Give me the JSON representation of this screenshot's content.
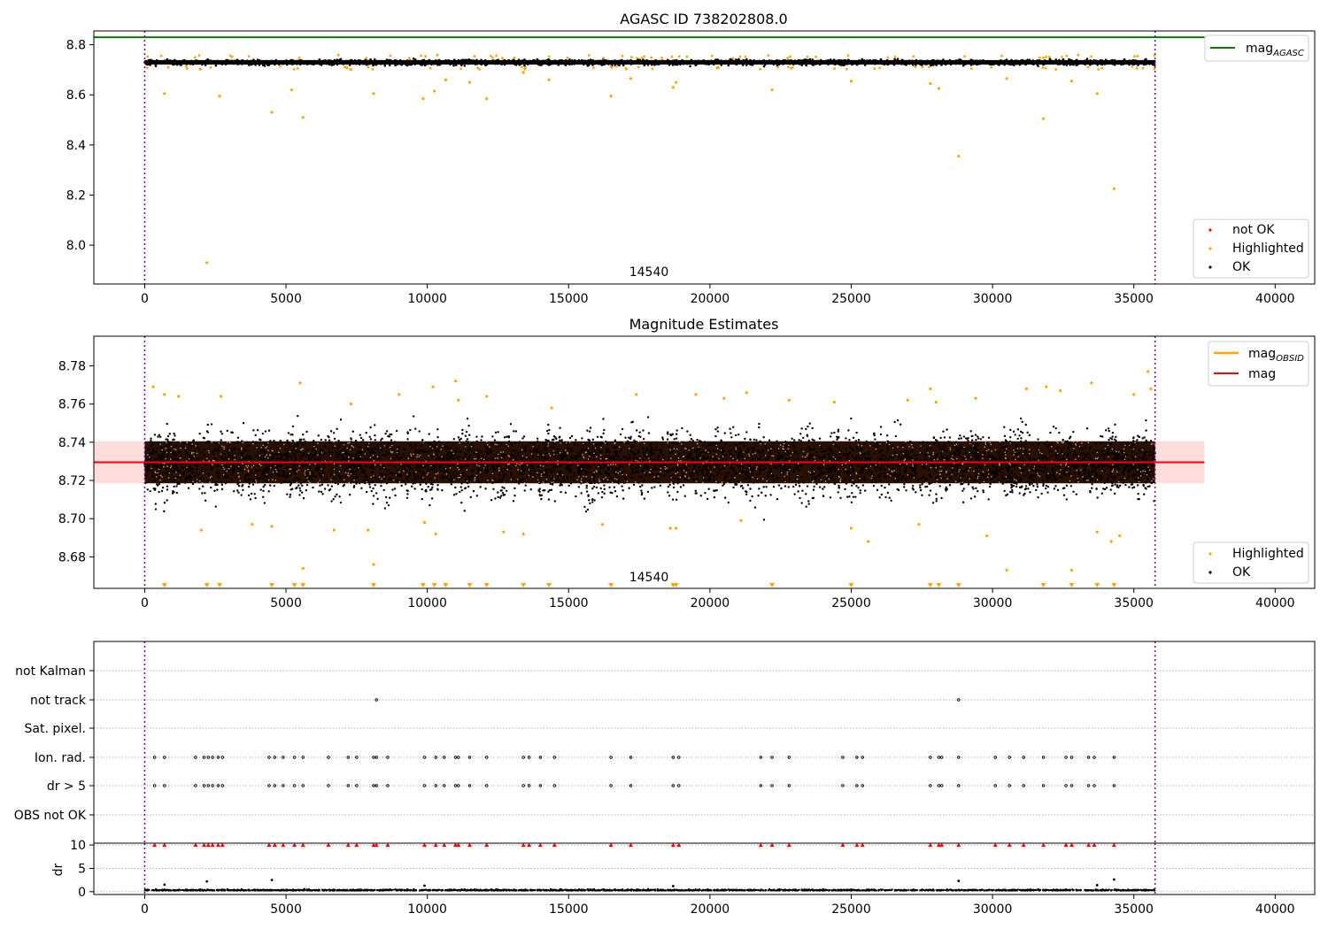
{
  "chart_data": [
    {
      "type": "scatter",
      "panel": "agasc",
      "title": "AGASC ID 738202808.0",
      "xlim": [
        -1800,
        41400
      ],
      "ylim": [
        7.845,
        8.855
      ],
      "xticks": [
        0,
        5000,
        10000,
        15000,
        20000,
        25000,
        30000,
        35000,
        40000
      ],
      "yticks": [
        8.0,
        8.2,
        8.4,
        8.6,
        8.8
      ],
      "ytick_labels": [
        "8.0",
        "8.2",
        "8.4",
        "8.6",
        "8.8"
      ],
      "obsid_label": "14540",
      "obsid_label_x": 17700,
      "obs_boundaries": [
        0,
        35750
      ],
      "grid": false,
      "legend_main": {
        "placement": "lower-right",
        "entries": [
          "not OK",
          "Highlighted",
          "OK"
        ]
      },
      "legend_line": {
        "placement": "upper-right",
        "entries": [
          "mag_AGASC"
        ],
        "label_text": "mag",
        "label_sub": "AGASC"
      },
      "series": [
        {
          "name": "mag_AGASC",
          "kind": "hline",
          "y": 8.83,
          "x_range": [
            -1800,
            37500
          ],
          "color": "#008000"
        },
        {
          "name": "OK",
          "kind": "band_points",
          "x_range": [
            0,
            35750
          ],
          "y_center": 8.73,
          "y_spread": 0.016,
          "color": "#000000"
        },
        {
          "name": "Highlighted",
          "color": "#ffa500",
          "x": [
            700,
            2200,
            2650,
            4500,
            5200,
            5600,
            8100,
            9850,
            10250,
            10650,
            11500,
            12100,
            13400,
            14300,
            16500,
            17200,
            18700,
            18800,
            22200,
            25000,
            27800,
            28100,
            28800,
            30500,
            31800,
            32800,
            33700,
            34300
          ],
          "y": [
            8.605,
            7.93,
            8.595,
            8.53,
            8.62,
            8.51,
            8.605,
            8.585,
            8.615,
            8.66,
            8.65,
            8.585,
            8.69,
            8.66,
            8.595,
            8.665,
            8.63,
            8.65,
            8.62,
            8.655,
            8.645,
            8.625,
            8.355,
            8.665,
            8.505,
            8.655,
            8.605,
            8.225
          ]
        },
        {
          "name": "not OK",
          "color": "#ff0000",
          "x": [],
          "y": []
        }
      ]
    },
    {
      "type": "scatter",
      "panel": "magnitude_estimates",
      "title": "Magnitude Estimates",
      "xlim": [
        -1800,
        41400
      ],
      "ylim": [
        8.6635,
        8.7955
      ],
      "xticks": [
        0,
        5000,
        10000,
        15000,
        20000,
        25000,
        30000,
        35000,
        40000
      ],
      "yticks": [
        8.68,
        8.7,
        8.72,
        8.74,
        8.76,
        8.78
      ],
      "ytick_labels": [
        "8.68",
        "8.70",
        "8.72",
        "8.74",
        "8.76",
        "8.78"
      ],
      "obsid_label": "14540",
      "obsid_label_x": 17700,
      "obs_boundaries": [
        0,
        35750
      ],
      "grid": false,
      "legend_main": {
        "placement": "lower-right",
        "entries": [
          "Highlighted",
          "OK"
        ]
      },
      "legend_line": {
        "placement": "upper-right",
        "entries": [
          "mag_OBSID",
          "mag"
        ],
        "label_text": "mag",
        "label_sub": "OBSID"
      },
      "series": [
        {
          "name": "mag",
          "kind": "hline",
          "y": 8.7295,
          "x_range": [
            -1800,
            37500
          ],
          "color": "#ff0000",
          "band": [
            8.7185,
            8.7405
          ]
        },
        {
          "name": "mag_OBSID",
          "kind": "hline",
          "color": "#ffa500"
        },
        {
          "name": "OK",
          "kind": "band_points",
          "x_range": [
            0,
            35750
          ],
          "y_center": 8.729,
          "y_spread": 0.012,
          "color": "#000000"
        },
        {
          "name": "Highlighted",
          "color": "#ffa500",
          "x": [
            300,
            700,
            1200,
            2000,
            2700,
            3800,
            4500,
            5500,
            5600,
            6700,
            7300,
            7900,
            8100,
            9000,
            9900,
            10200,
            10300,
            11000,
            11100,
            12100,
            12700,
            13400,
            14400,
            16200,
            17400,
            18600,
            18800,
            19500,
            20500,
            21100,
            21300,
            22800,
            24400,
            25000,
            25600,
            27000,
            27400,
            27800,
            28000,
            29400,
            29800,
            30500,
            31200,
            31900,
            32400,
            32800,
            33500,
            33700,
            34200,
            34500,
            35000,
            35500,
            35600
          ],
          "y": [
            8.769,
            8.765,
            8.764,
            8.694,
            8.764,
            8.697,
            8.696,
            8.771,
            8.674,
            8.694,
            8.76,
            8.694,
            8.676,
            8.765,
            8.698,
            8.769,
            8.692,
            8.772,
            8.762,
            8.764,
            8.693,
            8.692,
            8.758,
            8.697,
            8.765,
            8.695,
            8.695,
            8.765,
            8.763,
            8.699,
            8.766,
            8.762,
            8.761,
            8.695,
            8.688,
            8.762,
            8.697,
            8.768,
            8.761,
            8.763,
            8.691,
            8.673,
            8.768,
            8.769,
            8.767,
            8.673,
            8.771,
            8.693,
            8.688,
            8.691,
            8.765,
            8.777,
            8.768
          ]
        },
        {
          "name": "Highlighted (below range)",
          "kind": "edge_markers",
          "color": "#ffa500",
          "x": [
            700,
            2200,
            2650,
            4500,
            5300,
            5600,
            8100,
            9850,
            10250,
            10650,
            11500,
            12100,
            13400,
            14300,
            16500,
            18700,
            18800,
            22200,
            25000,
            27800,
            28100,
            28800,
            31800,
            32800,
            33700,
            34300
          ]
        }
      ]
    },
    {
      "type": "scatter",
      "panel": "flags",
      "xlim": [
        -1800,
        41400
      ],
      "xticks": [
        0,
        5000,
        10000,
        15000,
        20000,
        25000,
        30000,
        35000,
        40000
      ],
      "obs_boundaries": [
        0,
        35750
      ],
      "categories": [
        "not Kalman",
        "not track",
        "Sat. pixel.",
        "Ion. rad.",
        "dr > 5",
        "OBS not OK"
      ],
      "flag_points": {
        "not Kalman": [],
        "not track": [
          8200,
          28800
        ],
        "Sat. pixel.": [],
        "Ion. rad.": [
          350,
          700,
          1800,
          2100,
          2250,
          2400,
          2600,
          2750,
          4400,
          4600,
          4900,
          5300,
          5600,
          6500,
          7200,
          7500,
          8100,
          8200,
          8600,
          9900,
          10300,
          10600,
          11000,
          11100,
          11500,
          12100,
          13400,
          13600,
          14000,
          14500,
          16500,
          17200,
          18700,
          18900,
          21800,
          22200,
          22800,
          24700,
          25200,
          25400,
          27800,
          28100,
          28200,
          28800,
          30100,
          30600,
          31100,
          31800,
          32600,
          32800,
          33400,
          33600,
          34300
        ],
        "dr > 5": [
          350,
          700,
          1800,
          2100,
          2250,
          2400,
          2600,
          2750,
          4400,
          4600,
          4900,
          5300,
          5600,
          6500,
          7200,
          7500,
          8100,
          8200,
          8600,
          9900,
          10300,
          10600,
          11000,
          11100,
          11500,
          12100,
          13400,
          13600,
          14000,
          14500,
          16500,
          17200,
          18700,
          18900,
          21800,
          22200,
          22800,
          24700,
          25200,
          25400,
          27800,
          28100,
          28200,
          28800,
          30100,
          30600,
          31100,
          31800,
          32600,
          32800,
          33400,
          33600,
          34300
        ],
        "OBS not OK": []
      },
      "grid": true
    },
    {
      "type": "scatter",
      "panel": "dr",
      "ylabel": "dr",
      "xlim": [
        -1800,
        41400
      ],
      "ylim": [
        -0.6,
        10.4
      ],
      "xticks": [
        0,
        5000,
        10000,
        15000,
        20000,
        25000,
        30000,
        35000,
        40000
      ],
      "yticks": [
        0,
        5,
        10
      ],
      "ytick_labels": [
        "0",
        "5",
        "10"
      ],
      "obs_boundaries": [
        0,
        35750
      ],
      "grid": true,
      "series": [
        {
          "name": "dr",
          "kind": "band_points",
          "x_range": [
            0,
            35750
          ],
          "y_center": 0.25,
          "y_spread": 0.3,
          "color": "#000000"
        },
        {
          "name": "dr outliers",
          "color": "#000000",
          "x": [
            700,
            2200,
            4500,
            9900,
            18700,
            28800,
            33700,
            34300
          ],
          "y": [
            1.5,
            2.2,
            2.5,
            1.3,
            1.2,
            2.3,
            1.4,
            2.6
          ]
        },
        {
          "name": "dr > 10 clipped",
          "kind": "edge_markers",
          "color": "#ff0000",
          "x": [
            350,
            700,
            1800,
            2100,
            2250,
            2400,
            2600,
            2750,
            4400,
            4600,
            4900,
            5300,
            5600,
            6500,
            7200,
            7500,
            8100,
            8200,
            8600,
            9900,
            10300,
            10600,
            11000,
            11100,
            11500,
            12100,
            13400,
            13600,
            14000,
            14500,
            16500,
            17200,
            18700,
            18900,
            21800,
            22200,
            22800,
            24700,
            25200,
            25400,
            27800,
            28100,
            28200,
            28800,
            30100,
            30600,
            31100,
            31800,
            32600,
            32800,
            33400,
            33600,
            34300
          ]
        }
      ]
    }
  ],
  "colors": {
    "ok": "#000000",
    "highlighted": "#ffa500",
    "not_ok": "#ff0000",
    "mag_agasc": "#008000",
    "mag": "#ff0000",
    "mag_band": "#ffdddd",
    "obs_boundary": "#800080",
    "density_fill": "#2a1000",
    "grid": "#b0b0b0"
  }
}
